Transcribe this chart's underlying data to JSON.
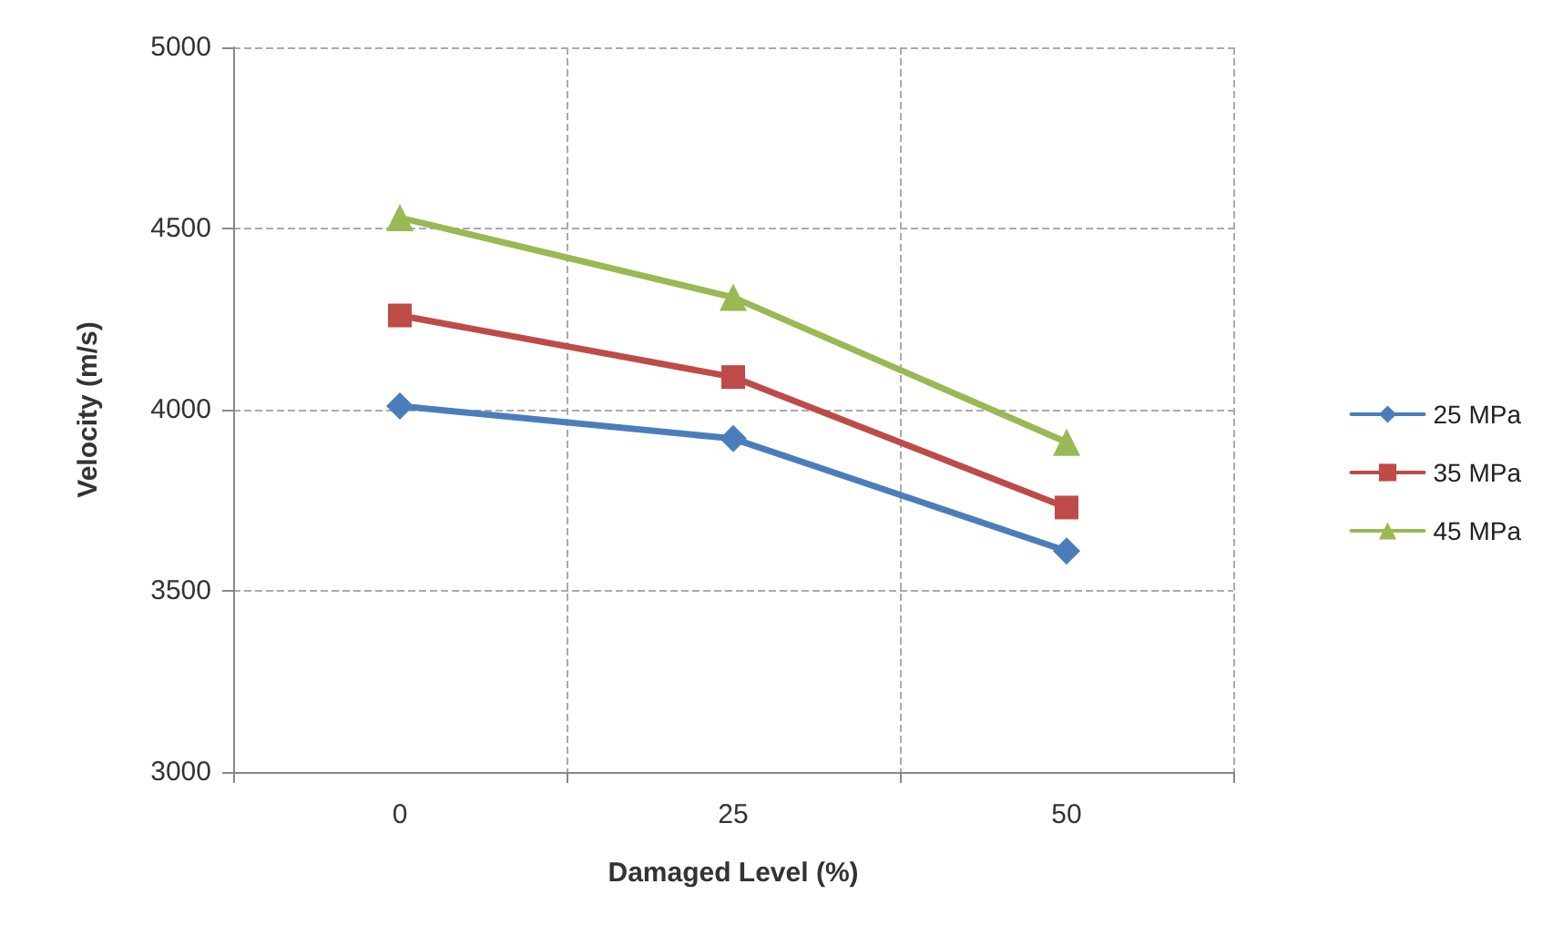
{
  "chart_data": {
    "type": "line",
    "xlabel": "Damaged Level (%)",
    "ylabel": "Velocity (m/s)",
    "categories": [
      "0",
      "25",
      "50"
    ],
    "series": [
      {
        "name": "25 MPa",
        "color": "#4a7ebb",
        "marker": "diamond",
        "values": [
          4010,
          3920,
          3610
        ]
      },
      {
        "name": "35 MPa",
        "color": "#be4b48",
        "marker": "square",
        "values": [
          4260,
          4090,
          3730
        ]
      },
      {
        "name": "45 MPa",
        "color": "#98b954",
        "marker": "triangle",
        "values": [
          4530,
          4310,
          3910
        ]
      }
    ],
    "ylim": [
      3000,
      5000
    ],
    "yticks": [
      3000,
      3500,
      4000,
      4500,
      5000
    ],
    "grid": true,
    "legend": "right",
    "line_style": "solid"
  }
}
